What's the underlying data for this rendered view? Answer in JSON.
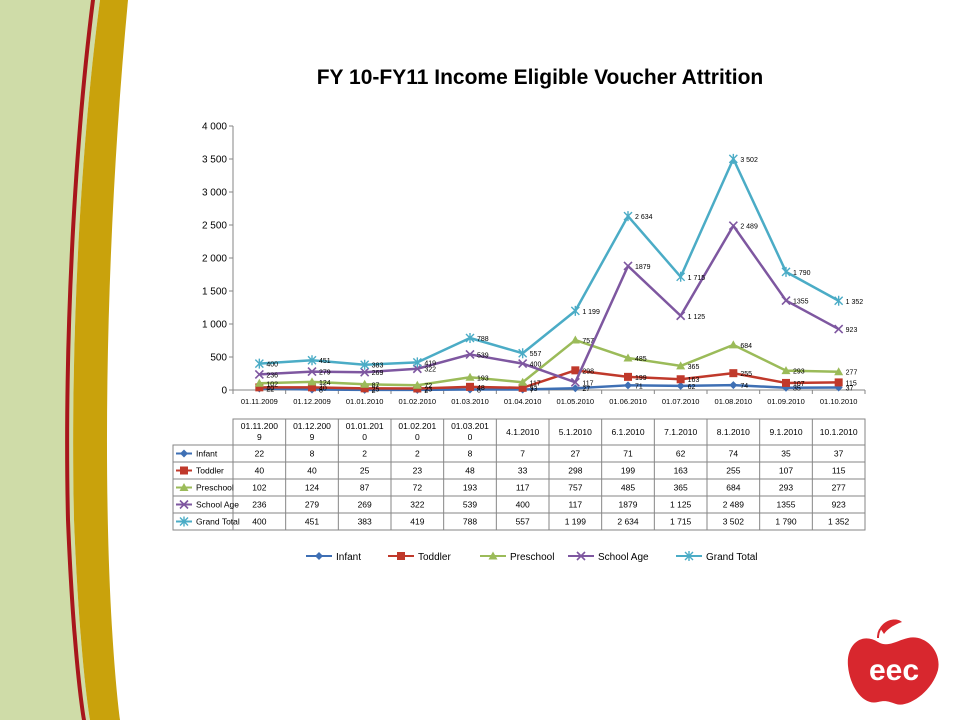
{
  "slide": {
    "title": "FY 10-FY11  Income Eligible Voucher Attrition",
    "logo_text": "eec"
  },
  "colors": {
    "panel_green": "#cfdca8",
    "stripe_gold": "#c9a20c",
    "stripe_red": "#a8161b",
    "logo_red": "#d8272e"
  },
  "chart_data": {
    "type": "line",
    "title": "FY 10-FY11  Income Eligible Voucher Attrition",
    "xlabel": "",
    "ylabel": "",
    "ylim": [
      0,
      4000
    ],
    "yticks": [
      0,
      500,
      1000,
      1500,
      2000,
      2500,
      3000,
      3500,
      4000
    ],
    "ytick_labels": [
      "0",
      "500",
      "1 000",
      "1 500",
      "2 000",
      "2 500",
      "3 000",
      "3 500",
      "4 000"
    ],
    "grid": false,
    "legend": "bottom",
    "categories": [
      "01.11.2009",
      "01.12.2009",
      "01.01.2010",
      "01.02.2010",
      "01.03.2010",
      "01.04.2010",
      "01.05.2010",
      "01.06.2010",
      "01.07.2010",
      "01.08.2010",
      "01.09.2010",
      "01.10.2010"
    ],
    "table_headers": [
      "01.11.200\n9",
      "01.12.200\n9",
      "01.01.201\n0",
      "01.02.201\n0",
      "01.03.201\n0",
      "4.1.2010",
      "5.1.2010",
      "6.1.2010",
      "7.1.2010",
      "8.1.2010",
      "9.1.2010",
      "10.1.2010"
    ],
    "series": [
      {
        "name": "Infant",
        "color": "#3e6fb4",
        "marker": "diamond",
        "values": [
          22,
          8,
          2,
          2,
          8,
          7,
          27,
          71,
          62,
          74,
          35,
          37
        ],
        "labels": [
          "22",
          "8",
          "2",
          "2",
          "8",
          "7",
          "27",
          "71",
          "62",
          "74",
          "35",
          "37"
        ]
      },
      {
        "name": "Toddler",
        "color": "#c0392b",
        "marker": "square",
        "values": [
          40,
          40,
          25,
          23,
          48,
          33,
          298,
          199,
          163,
          255,
          107,
          115
        ],
        "labels": [
          "40",
          "40",
          "25",
          "23",
          "48",
          "33",
          "298",
          "199",
          "163",
          "255",
          "107",
          "115"
        ]
      },
      {
        "name": "Preschool",
        "color": "#9bbb59",
        "marker": "triangle",
        "values": [
          102,
          124,
          87,
          72,
          193,
          117,
          757,
          485,
          365,
          684,
          293,
          277
        ],
        "labels": [
          "102",
          "124",
          "87",
          "72",
          "193",
          "117",
          "757",
          "485",
          "365",
          "684",
          "293",
          "277"
        ]
      },
      {
        "name": "School Age",
        "color": "#7e57a0",
        "marker": "x",
        "values": [
          236,
          279,
          269,
          322,
          539,
          400,
          117,
          1879,
          1125,
          2489,
          1355,
          923
        ],
        "labels": [
          "236",
          "279",
          "269",
          "322",
          "539",
          "400",
          "117",
          "1879",
          "1 125",
          "2 489",
          "1355",
          "923"
        ]
      },
      {
        "name": "Grand Total",
        "color": "#4bacc6",
        "marker": "star",
        "values": [
          400,
          451,
          383,
          419,
          788,
          557,
          1199,
          2634,
          1715,
          3502,
          1790,
          1352
        ],
        "labels": [
          "400",
          "451",
          "383",
          "419",
          "788",
          "557",
          "1 199",
          "2 634",
          "1 715",
          "3 502",
          "1 790",
          "1 352"
        ]
      }
    ]
  }
}
